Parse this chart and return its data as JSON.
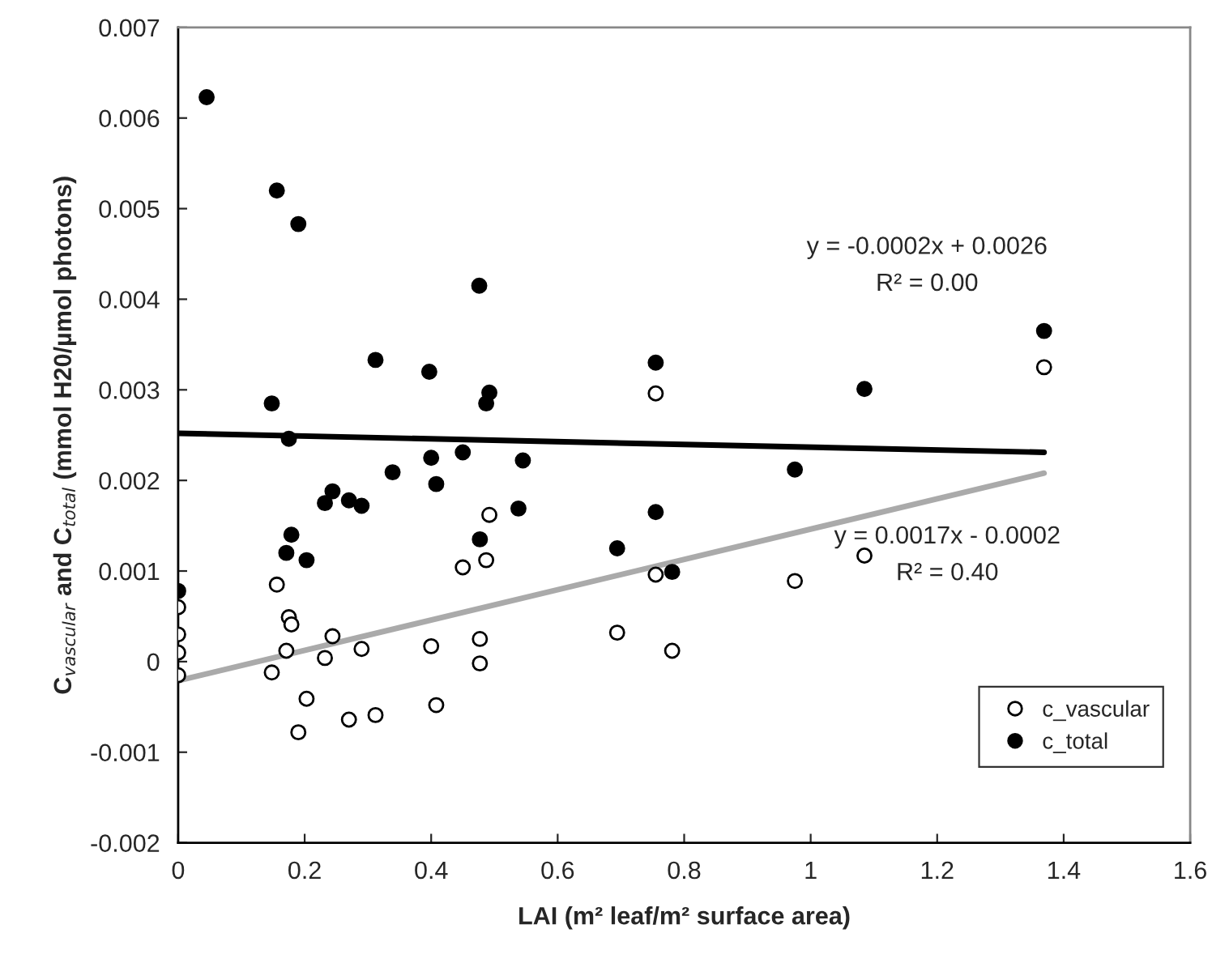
{
  "chart_data": {
    "type": "scatter",
    "xlabel": "LAI (m² leaf/m² surface area)",
    "ylabel": "C$_{vascular}$ and C$_{total}$ (mmol H20/µmol photons)",
    "xlim": [
      0,
      1.6
    ],
    "xticks": [
      0,
      0.2,
      0.4,
      0.6,
      0.8,
      1,
      1.2,
      1.4,
      1.6
    ],
    "ylim": [
      -0.002,
      0.007
    ],
    "yticks": [
      -0.002,
      -0.001,
      0,
      0.001,
      0.002,
      0.003,
      0.004,
      0.005,
      0.006,
      0.007
    ],
    "grid": false,
    "legend": "bottom right",
    "marker": "circle",
    "annotations": [
      "y = -0.0002x + 0.0026",
      "R² = 0.00",
      "y = 0.0017x - 0.0002",
      "R² = 0.40"
    ],
    "series": [
      {
        "name": "c_vascular",
        "color": "#ffffff",
        "x": [
          0,
          0,
          0,
          0,
          0.156,
          0.175,
          0.179,
          0.171,
          0.148,
          0.203,
          0.19,
          0.244,
          0.232,
          0.29,
          0.27,
          0.312,
          0.4,
          0.408,
          0.45,
          0.487,
          0.492,
          0.477,
          0.477,
          0.694,
          0.755,
          1.369,
          0.755,
          1.085,
          0.975,
          0.781
        ],
        "values": [
          0.0006,
          0.0003,
          0.0001,
          -0.00015,
          0.00085,
          0.00049,
          0.00041,
          0.00012,
          -0.00012,
          -0.00041,
          -0.00078,
          0.00028,
          4e-05,
          0.00014,
          -0.00064,
          -0.00059,
          0.00017,
          -0.00048,
          0.00104,
          0.00112,
          0.00162,
          0.00025,
          -2e-05,
          0.00032,
          0.00096,
          0.00325,
          0.00296,
          0.00117,
          0.00089,
          0.00012
        ]
      },
      {
        "name": "c_total",
        "color": "#000000",
        "x": [
          0.045,
          0.156,
          0.19,
          0.476,
          0.312,
          0.397,
          0.755,
          0.148,
          0.492,
          0.487,
          0.175,
          0.4,
          0.45,
          0.545,
          0.339,
          0.408,
          0.232,
          0.244,
          0.27,
          0.29,
          0.179,
          0.171,
          0.203,
          0,
          0.538,
          0.477,
          0.694,
          0.755,
          1.369,
          1.085,
          0.975,
          0.781
        ],
        "values": [
          0.00623,
          0.0052,
          0.00483,
          0.00415,
          0.00333,
          0.0032,
          0.0033,
          0.00285,
          0.00297,
          0.00285,
          0.00246,
          0.00225,
          0.00231,
          0.00222,
          0.00209,
          0.00196,
          0.00175,
          0.00188,
          0.00178,
          0.00172,
          0.0014,
          0.0012,
          0.00112,
          0.00078,
          0.00169,
          0.00135,
          0.00125,
          0.00165,
          0.00365,
          0.00301,
          0.00212,
          0.00099
        ]
      },
      {
        "type": "line",
        "marker": "none",
        "color": "#000000",
        "x": [
          0,
          1.369
        ],
        "values": [
          0.00252,
          0.00231
        ]
      },
      {
        "type": "line",
        "marker": "none",
        "color": "#aaaaaa",
        "x": [
          0,
          1.369
        ],
        "values": [
          -0.00021,
          0.00208
        ]
      }
    ]
  }
}
